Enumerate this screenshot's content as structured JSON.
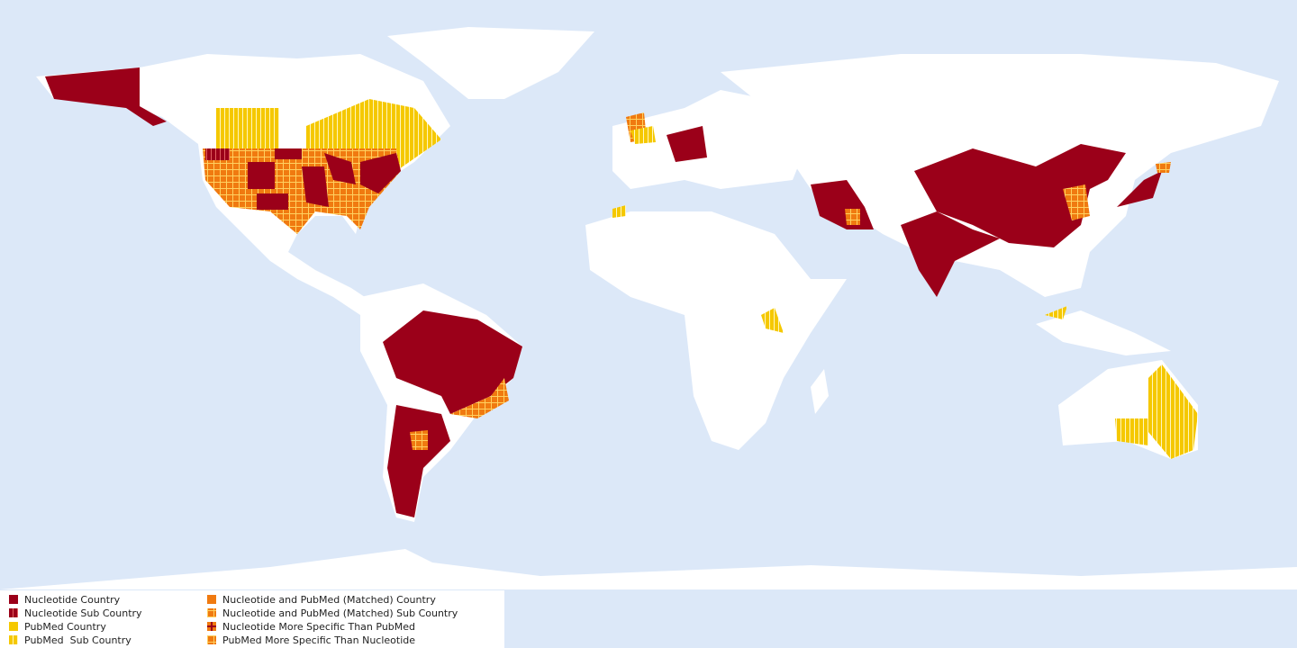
{
  "legend": {
    "items": [
      {
        "label": "Nucleotide Country"
      },
      {
        "label": "Nucleotide Sub Country"
      },
      {
        "label": "PubMed Country"
      },
      {
        "label": "PubMed  Sub Country"
      },
      {
        "label": "Nucleotide and PubMed (Matched) Country"
      },
      {
        "label": "Nucleotide and PubMed (Matched) Sub Country"
      },
      {
        "label": "Nucleotide More Specific Than PubMed"
      },
      {
        "label": "PubMed More Specific Than Nucleotide"
      }
    ]
  }
}
